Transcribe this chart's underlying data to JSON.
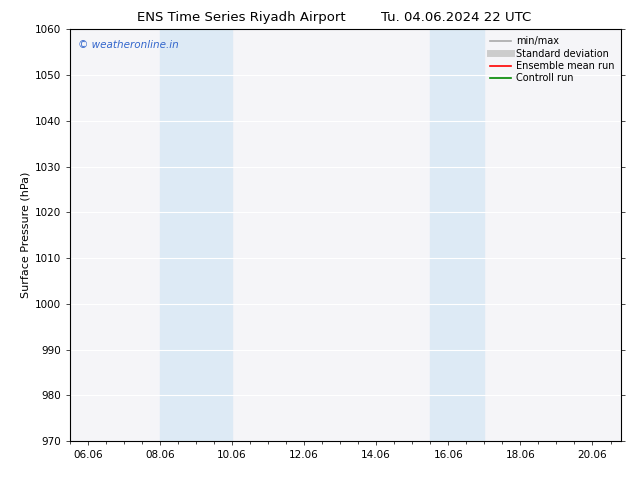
{
  "title_left": "ENS Time Series Riyadh Airport",
  "title_right": "Tu. 04.06.2024 22 UTC",
  "ylabel": "Surface Pressure (hPa)",
  "ylim": [
    970,
    1060
  ],
  "yticks": [
    970,
    980,
    990,
    1000,
    1010,
    1020,
    1030,
    1040,
    1050,
    1060
  ],
  "xlim_start": 5.5,
  "xlim_end": 20.8,
  "xtick_labels": [
    "06.06",
    "08.06",
    "10.06",
    "12.06",
    "14.06",
    "16.06",
    "18.06",
    "20.06"
  ],
  "xtick_positions": [
    6.0,
    8.0,
    10.0,
    12.0,
    14.0,
    16.0,
    18.0,
    20.0
  ],
  "shaded_bands": [
    {
      "x_start": 8.0,
      "x_end": 10.0
    },
    {
      "x_start": 15.5,
      "x_end": 17.0
    }
  ],
  "shaded_color": "#ddeaf5",
  "watermark_text": "© weatheronline.in",
  "watermark_color": "#3366cc",
  "legend_items": [
    {
      "label": "min/max",
      "color": "#aaaaaa",
      "lw": 1.2,
      "style": "solid"
    },
    {
      "label": "Standard deviation",
      "color": "#cccccc",
      "lw": 5,
      "style": "solid"
    },
    {
      "label": "Ensemble mean run",
      "color": "#ff0000",
      "lw": 1.2,
      "style": "solid"
    },
    {
      "label": "Controll run",
      "color": "#008800",
      "lw": 1.2,
      "style": "solid"
    }
  ],
  "bg_color": "#ffffff",
  "plot_bg_color": "#f5f5f8",
  "grid_color": "#ffffff",
  "title_fontsize": 9.5,
  "tick_fontsize": 7.5,
  "ylabel_fontsize": 8,
  "watermark_fontsize": 7.5,
  "legend_fontsize": 7
}
